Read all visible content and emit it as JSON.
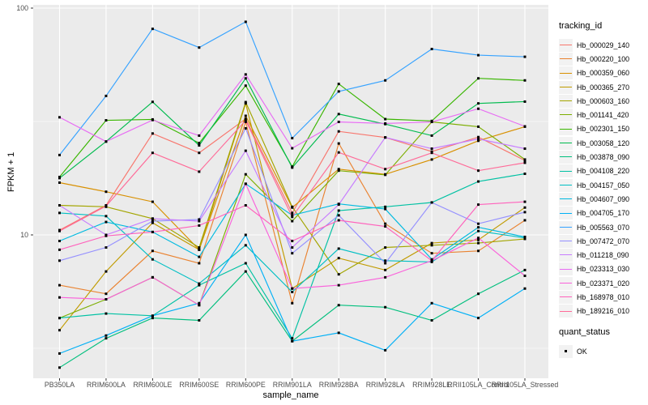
{
  "chart_data": {
    "type": "line",
    "title": "",
    "xlabel": "sample_name",
    "ylabel": "FPKM + 1",
    "yscale": "log10",
    "ylim": [
      2.1,
      105
    ],
    "y_major_ticks": [
      10,
      100
    ],
    "y_minor_gridlines": [
      3.162,
      31.62
    ],
    "grid": true,
    "legend_position": "right",
    "point_shape": "filled-square",
    "point_color": "#000000",
    "legend_titles": {
      "series": "tracking_id",
      "shape": "quant_status"
    },
    "quant_status": {
      "label": "OK"
    },
    "x": [
      "PB350LA",
      "RRIM600LA",
      "RRIM600LE",
      "RRIM600SE",
      "RRIM600PE",
      "RRIM901LA",
      "RRIM928BA",
      "RRIM928LA",
      "RRIM928LE",
      "RRII105LA_Control",
      "RRII105LA_Stressed"
    ],
    "series": [
      {
        "name": "Hb_000029_140",
        "color": "#F8766D",
        "values": [
          10.5,
          13.5,
          28.0,
          23.0,
          32.5,
          12.5,
          28.6,
          26.9,
          23.3,
          27.0,
          21.3
        ]
      },
      {
        "name": "Hb_000220_100",
        "color": "#EA8331",
        "values": [
          6.0,
          5.5,
          8.5,
          7.5,
          31.5,
          5.0,
          25.3,
          11.2,
          8.3,
          8.5,
          11.6
        ]
      },
      {
        "name": "Hb_000359_060",
        "color": "#D89000",
        "values": [
          17.0,
          15.5,
          14.0,
          8.6,
          33.5,
          13.2,
          19.5,
          18.5,
          21.5,
          26.0,
          30.0
        ]
      },
      {
        "name": "Hb_000365_270",
        "color": "#C09B00",
        "values": [
          3.8,
          6.9,
          11.3,
          8.6,
          38.0,
          5.8,
          7.9,
          7.0,
          9.2,
          9.5,
          13.2
        ]
      },
      {
        "name": "Hb_000603_160",
        "color": "#A3A500",
        "values": [
          13.5,
          13.3,
          11.8,
          8.8,
          38.5,
          13.3,
          6.7,
          8.8,
          9.0,
          9.2,
          9.6
        ]
      },
      {
        "name": "Hb_001141_420",
        "color": "#7CAE00",
        "values": [
          4.3,
          5.2,
          6.5,
          4.9,
          18.5,
          11.5,
          19.2,
          18.4,
          31.5,
          30.0,
          21.5
        ]
      },
      {
        "name": "Hb_002301_150",
        "color": "#39B600",
        "values": [
          18.0,
          32.0,
          32.3,
          25.4,
          45.5,
          20.0,
          46.3,
          32.4,
          31.8,
          49.0,
          48.0
        ]
      },
      {
        "name": "Hb_003058_120",
        "color": "#00BB4E",
        "values": [
          17.8,
          25.8,
          38.6,
          24.8,
          49.0,
          19.8,
          34.1,
          30.8,
          27.4,
          38.0,
          38.7
        ]
      },
      {
        "name": "Hb_003878_090",
        "color": "#00BF7D",
        "values": [
          2.6,
          3.5,
          4.3,
          4.2,
          6.9,
          3.4,
          4.9,
          4.8,
          4.2,
          5.5,
          7.0
        ]
      },
      {
        "name": "Hb_004108_220",
        "color": "#00C1A3",
        "values": [
          4.3,
          4.5,
          4.4,
          6.0,
          7.5,
          3.5,
          12.8,
          13.3,
          13.9,
          17.2,
          18.6
        ]
      },
      {
        "name": "Hb_004157_050",
        "color": "#00BFC4",
        "values": [
          12.5,
          12.1,
          7.8,
          6.1,
          9.0,
          5.6,
          8.7,
          7.7,
          7.6,
          10.4,
          9.7
        ]
      },
      {
        "name": "Hb_004607_090",
        "color": "#00BAE0",
        "values": [
          9.4,
          11.4,
          10.3,
          8.0,
          16.8,
          12.2,
          13.7,
          13.0,
          7.8,
          10.8,
          9.8
        ]
      },
      {
        "name": "Hb_004705_170",
        "color": "#00B0F6",
        "values": [
          3.0,
          3.6,
          4.4,
          5.0,
          10.0,
          3.4,
          3.7,
          3.1,
          5.0,
          4.3,
          5.8
        ]
      },
      {
        "name": "Hb_005563_070",
        "color": "#35A2FF",
        "values": [
          22.5,
          41.0,
          81.0,
          67.0,
          87.0,
          26.7,
          42.9,
          48.0,
          66.0,
          62.0,
          61.0
        ]
      },
      {
        "name": "Hb_007472_070",
        "color": "#9590FF",
        "values": [
          7.7,
          8.8,
          11.5,
          11.7,
          29.5,
          8.3,
          12.2,
          7.5,
          13.9,
          11.2,
          12.6
        ]
      },
      {
        "name": "Hb_011218_090",
        "color": "#C77CFF",
        "values": [
          13.5,
          10.0,
          11.8,
          11.5,
          23.5,
          8.8,
          13.6,
          26.9,
          24.0,
          26.5,
          24.0
        ]
      },
      {
        "name": "Hb_023313_030",
        "color": "#E76BF3",
        "values": [
          33.0,
          25.8,
          32.1,
          27.4,
          51.0,
          24.1,
          31.5,
          31.0,
          31.5,
          36.0,
          30.1
        ]
      },
      {
        "name": "Hb_023371_020",
        "color": "#FA62DB",
        "values": [
          5.3,
          5.2,
          6.5,
          4.9,
          16.8,
          5.8,
          6.0,
          6.5,
          7.7,
          9.7,
          6.6
        ]
      },
      {
        "name": "Hb_168978_010",
        "color": "#FF62BC",
        "values": [
          8.6,
          9.9,
          10.3,
          11.0,
          13.5,
          9.4,
          11.6,
          10.9,
          7.7,
          13.6,
          14.0
        ]
      },
      {
        "name": "Hb_189216_010",
        "color": "#FF6A98",
        "values": [
          10.4,
          13.4,
          23.0,
          19.0,
          32.0,
          12.0,
          23.1,
          19.5,
          23.0,
          19.2,
          20.8
        ]
      }
    ]
  },
  "theme": {
    "panel_bg": "#EBEBEB",
    "grid_color": "#FFFFFF",
    "axis_text_color": "#4D4D4D",
    "tick_color": "#333333",
    "legend_key_bg": "#F2F2F2",
    "background": "#FFFFFF"
  }
}
